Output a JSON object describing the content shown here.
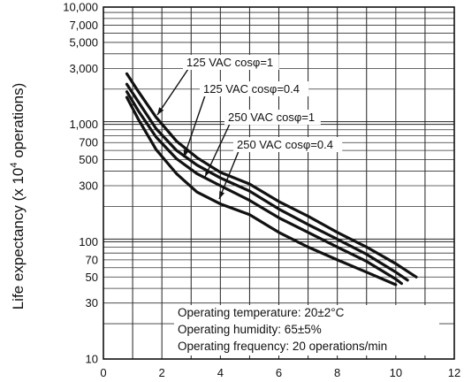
{
  "chart_data": {
    "type": "line",
    "title": "",
    "xlabel": "",
    "ylabel": "Life expectancy  (x 10",
    "ylabel_sup": "4",
    "ylabel_tail": "  operations)",
    "xlim": [
      0,
      12
    ],
    "ylim": [
      10,
      10000
    ],
    "yscale": "log",
    "grid": true,
    "x_ticks": [
      {
        "value": 0,
        "label": "0"
      },
      {
        "value": 2,
        "label": "2"
      },
      {
        "value": 4,
        "label": "4"
      },
      {
        "value": 6,
        "label": "6"
      },
      {
        "value": 8,
        "label": "8"
      },
      {
        "value": 10,
        "label": "10"
      },
      {
        "value": 12,
        "label": "12"
      }
    ],
    "y_ticks": [
      {
        "value": 10,
        "label": "10"
      },
      {
        "value": 30,
        "label": "30"
      },
      {
        "value": 50,
        "label": "50"
      },
      {
        "value": 70,
        "label": "70"
      },
      {
        "value": 100,
        "label": "100"
      },
      {
        "value": 300,
        "label": "300"
      },
      {
        "value": 500,
        "label": "500"
      },
      {
        "value": 700,
        "label": "700"
      },
      {
        "value": 1000,
        "label": "1,000"
      },
      {
        "value": 3000,
        "label": "3,000"
      },
      {
        "value": 5000,
        "label": "5,000"
      },
      {
        "value": 7000,
        "label": "7,000"
      },
      {
        "value": 10000,
        "label": "10,000"
      }
    ],
    "series": [
      {
        "name": "125 VAC cosφ=1",
        "x": [
          0.8,
          1.2,
          1.8,
          2.5,
          3.2,
          4,
          5,
          6,
          7,
          8,
          9,
          10,
          10.7
        ],
        "y": [
          2700,
          1900,
          1150,
          720,
          520,
          390,
          310,
          220,
          165,
          120,
          90,
          65,
          50
        ]
      },
      {
        "name": "125 VAC cosφ=0.4",
        "x": [
          0.8,
          1.2,
          1.8,
          2.5,
          3.2,
          4,
          5,
          6,
          7,
          8,
          9,
          10,
          10.4
        ],
        "y": [
          2200,
          1550,
          920,
          600,
          450,
          350,
          270,
          190,
          140,
          105,
          78,
          55,
          47
        ]
      },
      {
        "name": "250 VAC cosφ=1",
        "x": [
          0.8,
          1.2,
          1.8,
          2.5,
          3.2,
          4,
          5,
          6,
          7,
          8,
          9,
          10,
          10.2
        ],
        "y": [
          1900,
          1300,
          780,
          510,
          380,
          300,
          225,
          160,
          120,
          90,
          68,
          48,
          44
        ]
      },
      {
        "name": "250 VAC cosφ=0.4",
        "x": [
          0.8,
          1.2,
          1.8,
          2.5,
          3.2,
          4,
          5,
          6,
          7,
          8,
          9,
          10
        ],
        "y": [
          1700,
          1100,
          610,
          380,
          265,
          210,
          170,
          120,
          90,
          70,
          55,
          43
        ]
      }
    ],
    "annotations": [
      "Operating temperature: 20±2°C",
      "Operating humidity: 65±5%",
      "Operating frequency: 20 operations/min"
    ]
  }
}
